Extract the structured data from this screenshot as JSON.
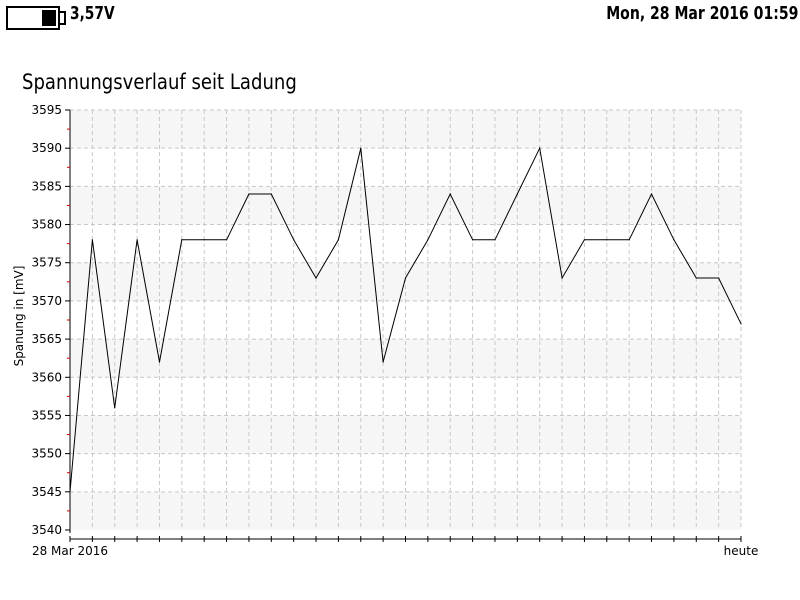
{
  "status": {
    "battery_voltage": "3,57V",
    "battery_level": 0.3,
    "datetime": "Mon, 28 Mar 2016 01:59"
  },
  "chart_data": {
    "type": "line",
    "title": "Spannungsverlauf seit Ladung",
    "ylabel": "Spanung in [mV]",
    "xlabel": "",
    "x_tick_labels": [
      "28 Mar 2016",
      "heute"
    ],
    "ylim": [
      3540,
      3595
    ],
    "y_ticks": [
      3540,
      3545,
      3550,
      3555,
      3560,
      3565,
      3570,
      3575,
      3580,
      3585,
      3590,
      3595
    ],
    "grid": true,
    "legend": "none",
    "line_color": "#000000",
    "series": [
      {
        "values": [
          3545,
          3578,
          3556,
          3578,
          3562,
          3578,
          3578,
          3578,
          3584,
          3584,
          3578,
          3573,
          3578,
          3590,
          3562,
          3573,
          3578,
          3584,
          3578,
          3578,
          3584,
          3590,
          3573,
          3578,
          3578,
          3578,
          3584,
          3578,
          3573,
          3573,
          3567
        ]
      }
    ]
  }
}
